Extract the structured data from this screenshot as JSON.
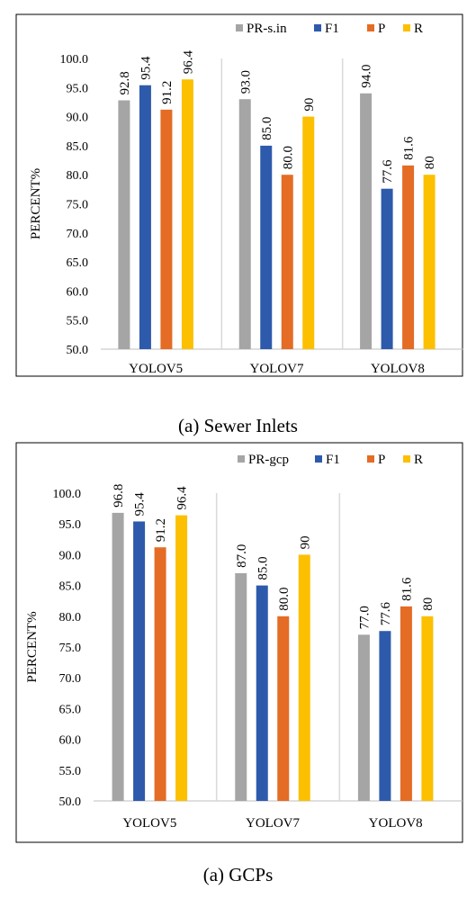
{
  "chart_data": [
    {
      "type": "bar",
      "categories": [
        "YOLOV5",
        "YOLOV7",
        "YOLOV8"
      ],
      "series": [
        {
          "name": "PR-s.in",
          "values": [
            92.8,
            93.0,
            94.0
          ],
          "labels": [
            "92.8",
            "93.0",
            "94.0"
          ],
          "color": "#a5a5a5"
        },
        {
          "name": "F1",
          "values": [
            95.4,
            85.0,
            77.6
          ],
          "labels": [
            "95.4",
            "85.0",
            "77.6"
          ],
          "color": "#2e5aac"
        },
        {
          "name": "P",
          "values": [
            91.2,
            80.0,
            81.6
          ],
          "labels": [
            "91.2",
            "80.0",
            "81.6"
          ],
          "color": "#e46c25"
        },
        {
          "name": "R",
          "values": [
            96.4,
            90,
            80
          ],
          "labels": [
            "96.4",
            "90",
            "80"
          ],
          "color": "#fcc000"
        }
      ],
      "ylabel": "PERCENT%",
      "ylim": [
        50,
        100
      ],
      "yticks": [
        "50.0",
        "55.0",
        "60.0",
        "65.0",
        "70.0",
        "75.0",
        "80.0",
        "85.0",
        "90.0",
        "95.0",
        "100.0"
      ],
      "legend": "top-right",
      "grid": false
    },
    {
      "type": "bar",
      "categories": [
        "YOLOV5",
        "YOLOV7",
        "YOLOV8"
      ],
      "series": [
        {
          "name": "PR-gcp",
          "values": [
            96.8,
            87.0,
            77.0
          ],
          "labels": [
            "96.8",
            "87.0",
            "77.0"
          ],
          "color": "#a5a5a5"
        },
        {
          "name": "F1",
          "values": [
            95.4,
            85.0,
            77.6
          ],
          "labels": [
            "95.4",
            "85.0",
            "77.6"
          ],
          "color": "#2e5aac"
        },
        {
          "name": "P",
          "values": [
            91.2,
            80.0,
            81.6
          ],
          "labels": [
            "91.2",
            "80.0",
            "81.6"
          ],
          "color": "#e46c25"
        },
        {
          "name": "R",
          "values": [
            96.4,
            90,
            80
          ],
          "labels": [
            "96.4",
            "90",
            "80"
          ],
          "color": "#fcc000"
        }
      ],
      "ylabel": "PERCENT%",
      "ylim": [
        50,
        100
      ],
      "yticks": [
        "50.0",
        "55.0",
        "60.0",
        "65.0",
        "70.0",
        "75.0",
        "80.0",
        "85.0",
        "90.0",
        "95.0",
        "100.0"
      ],
      "legend": "top-right",
      "grid": false
    }
  ],
  "captions": {
    "a": "(a) Sewer Inlets",
    "b": "(a)  GCPs"
  }
}
